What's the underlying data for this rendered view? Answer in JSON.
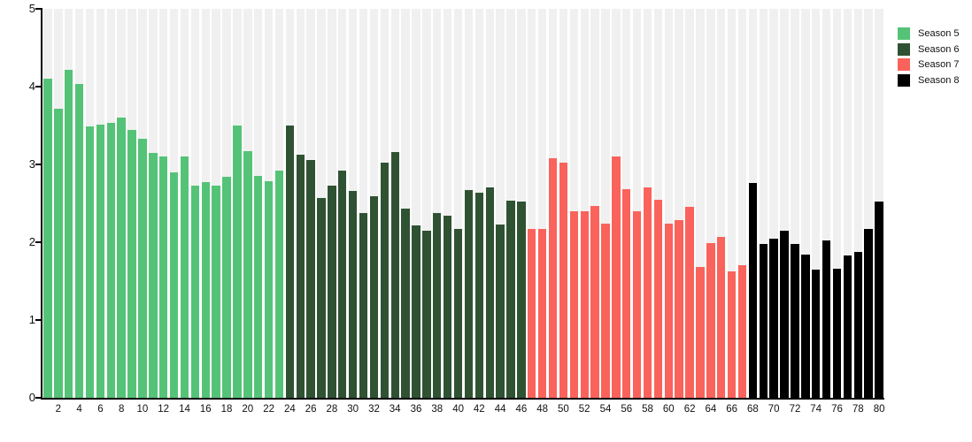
{
  "chart_data": {
    "type": "bar",
    "title": "",
    "xlabel": "",
    "ylabel": "",
    "ylim": [
      0,
      5
    ],
    "y_ticks": [
      0,
      1,
      2,
      3,
      4,
      5
    ],
    "x_ticks": [
      2,
      4,
      6,
      8,
      10,
      12,
      14,
      16,
      18,
      20,
      22,
      24,
      26,
      28,
      30,
      32,
      34,
      36,
      38,
      40,
      42,
      44,
      46,
      48,
      50,
      52,
      54,
      56,
      58,
      60,
      62,
      64,
      66,
      68,
      70,
      72,
      74,
      76,
      78,
      80
    ],
    "grid": "light-gray full-height background column behind every bar",
    "legend_position": "top-right",
    "background_column_color": "#f0f0f0",
    "axis_color": "#000000",
    "series": [
      {
        "name": "Season 5",
        "color": "#55c377",
        "start_episode": 1,
        "values": [
          4.1,
          3.72,
          4.22,
          4.04,
          3.49,
          3.51,
          3.53,
          3.6,
          3.44,
          3.33,
          3.15,
          3.1,
          2.9,
          3.1,
          2.73,
          2.77,
          2.73,
          2.84,
          3.5,
          3.17,
          2.85,
          2.78,
          2.92
        ]
      },
      {
        "name": "Season 6",
        "color": "#2f5233",
        "start_episode": 24,
        "values": [
          3.5,
          3.13,
          3.06,
          2.57,
          2.73,
          2.92,
          2.66,
          2.38,
          2.59,
          3.02,
          3.16,
          2.43,
          2.22,
          2.15,
          2.38,
          2.34,
          2.17,
          2.67,
          2.64,
          2.7,
          2.23,
          2.53,
          2.52
        ]
      },
      {
        "name": "Season 7",
        "color": "#f9635b",
        "start_episode": 47,
        "values": [
          2.17,
          2.17,
          3.08,
          3.02,
          2.4,
          2.4,
          2.47,
          2.24,
          3.1,
          2.68,
          2.4,
          2.7,
          2.55,
          2.24,
          2.28,
          2.45,
          1.68,
          1.99,
          2.07,
          1.62,
          1.71
        ]
      },
      {
        "name": "Season 8",
        "color": "#000000",
        "start_episode": 68,
        "values": [
          2.76,
          1.98,
          2.05,
          2.15,
          1.98,
          1.84,
          1.65,
          2.02,
          1.66,
          1.83,
          1.88,
          2.17,
          2.52
        ]
      }
    ]
  }
}
